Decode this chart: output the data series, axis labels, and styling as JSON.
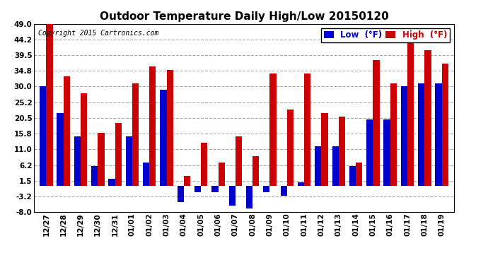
{
  "title": "Outdoor Temperature Daily High/Low 20150120",
  "copyright": "Copyright 2015 Cartronics.com",
  "legend_low": "Low  (°F)",
  "legend_high": "High  (°F)",
  "dates": [
    "12/27",
    "12/28",
    "12/29",
    "12/30",
    "12/31",
    "01/01",
    "01/02",
    "01/03",
    "01/04",
    "01/05",
    "01/06",
    "01/07",
    "01/08",
    "01/09",
    "01/10",
    "01/11",
    "01/12",
    "01/13",
    "01/14",
    "01/15",
    "01/16",
    "01/17",
    "01/18",
    "01/19"
  ],
  "lows": [
    30,
    22,
    15,
    6,
    2,
    15,
    7,
    29,
    -5,
    -2,
    -2,
    -6,
    -7,
    -2,
    -3,
    1,
    12,
    12,
    6,
    20,
    20,
    30,
    31,
    31
  ],
  "highs": [
    49,
    33,
    28,
    16,
    19,
    31,
    36,
    35,
    3,
    13,
    7,
    15,
    9,
    34,
    23,
    34,
    22,
    21,
    7,
    38,
    31,
    45,
    41,
    37
  ],
  "ylim": [
    -8,
    49
  ],
  "yticks": [
    -8.0,
    -3.2,
    1.5,
    6.2,
    11.0,
    15.8,
    20.5,
    25.2,
    30.0,
    34.8,
    39.5,
    44.2,
    49.0
  ],
  "bar_width": 0.38,
  "low_color": "#0000cc",
  "high_color": "#cc0000",
  "bg_color": "#ffffff",
  "grid_color": "#aaaaaa",
  "title_fontsize": 11,
  "tick_fontsize": 7.5,
  "legend_fontsize": 8.5,
  "copyright_fontsize": 7
}
